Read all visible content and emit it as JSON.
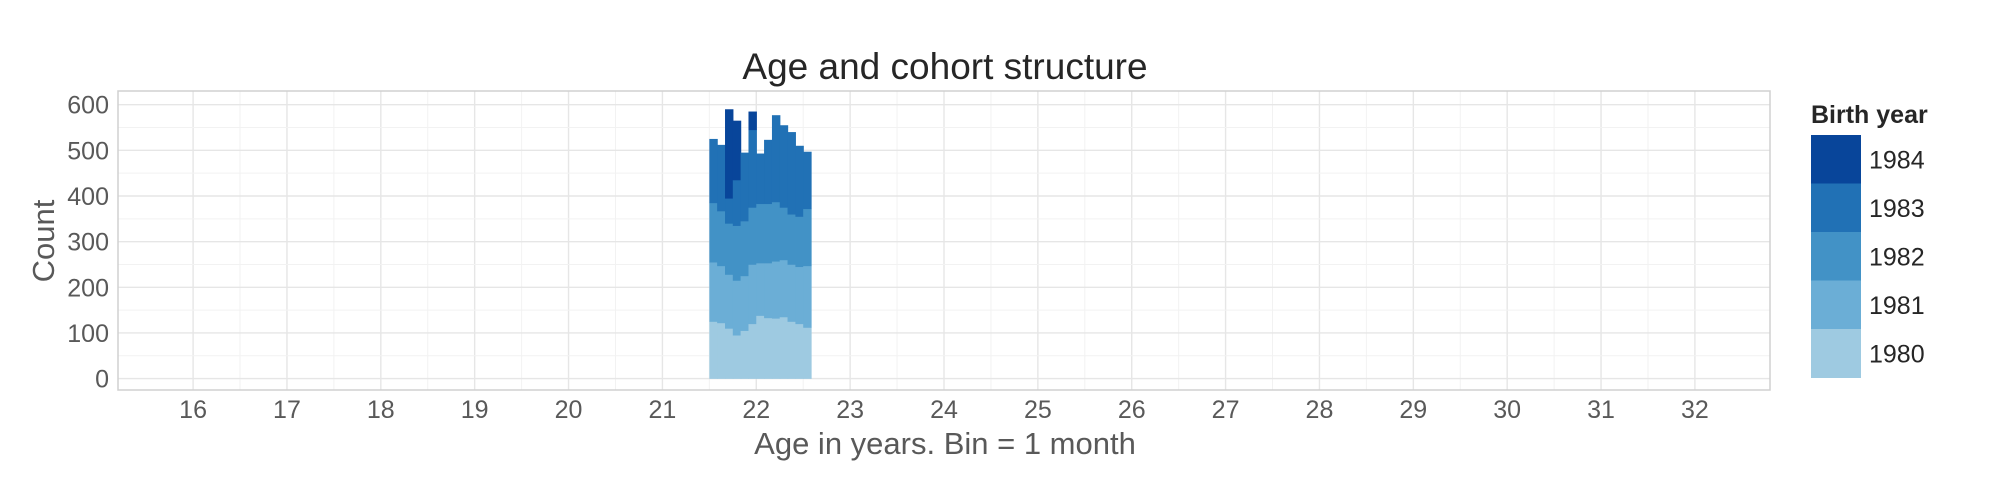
{
  "chart_data": {
    "type": "bar",
    "stacked": true,
    "title": "Age and cohort structure",
    "xlabel": "Age in years. Bin = 1 month",
    "ylabel": "Count",
    "xlim": [
      15.2,
      32.8
    ],
    "ylim": [
      -25,
      630
    ],
    "x_ticks": [
      16,
      17,
      18,
      19,
      20,
      21,
      22,
      23,
      24,
      25,
      26,
      27,
      28,
      29,
      30,
      31,
      32
    ],
    "y_ticks": [
      0,
      100,
      200,
      300,
      400,
      500,
      600
    ],
    "grid": true,
    "legend_position": "right",
    "legend_title": "Birth year",
    "bin_width": 0.0833,
    "x": [
      21.5,
      21.583,
      21.667,
      21.75,
      21.833,
      21.917,
      22.0,
      22.083,
      22.167,
      22.25,
      22.333,
      22.417,
      22.5
    ],
    "series": [
      {
        "name": "1980",
        "color": "#9ecae1",
        "values": [
          125,
          122,
          110,
          95,
          105,
          120,
          138,
          133,
          132,
          135,
          125,
          120,
          112
        ]
      },
      {
        "name": "1981",
        "color": "#6baed6",
        "values": [
          130,
          125,
          118,
          120,
          120,
          130,
          115,
          120,
          125,
          125,
          125,
          125,
          135
        ]
      },
      {
        "name": "1982",
        "color": "#4292c6",
        "values": [
          130,
          120,
          112,
          120,
          120,
          125,
          130,
          130,
          130,
          115,
          110,
          110,
          125
        ]
      },
      {
        "name": "1983",
        "color": "#2171b5",
        "values": [
          140,
          145,
          55,
          100,
          150,
          170,
          110,
          140,
          190,
          180,
          180,
          155,
          125
        ]
      },
      {
        "name": "1984",
        "color": "#08459a",
        "values": [
          0,
          0,
          195,
          130,
          0,
          40,
          0,
          0,
          0,
          0,
          0,
          0,
          0
        ]
      }
    ]
  }
}
